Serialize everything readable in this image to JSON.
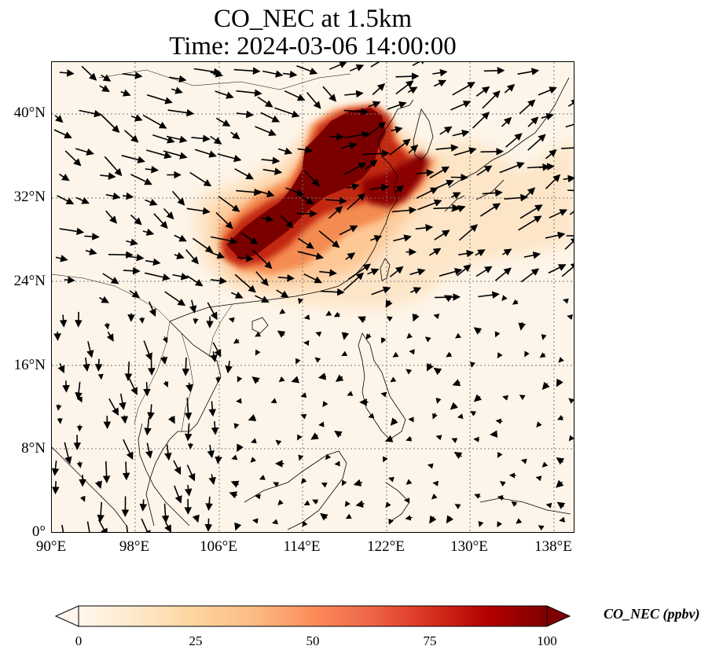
{
  "title": {
    "line1": "CO_NEC at 1.5km",
    "line2": "Time: 2024-03-06 14:00:00"
  },
  "map": {
    "lon_range": [
      90,
      140
    ],
    "lat_range": [
      0,
      45
    ],
    "projection": "PlateCarree",
    "gridlines": "dotted",
    "field": "CO_NEC",
    "overlay": "wind vectors",
    "xticks": [
      "90°E",
      "98°E",
      "106°E",
      "114°E",
      "122°E",
      "130°E",
      "138°E"
    ],
    "yticks": [
      "0°",
      "8°N",
      "16°N",
      "24°N",
      "32°N",
      "40°N"
    ]
  },
  "colorbar": {
    "label": "CO_NEC (ppbv)",
    "ticks": [
      "0",
      "25",
      "50",
      "75",
      "100"
    ],
    "range": [
      0,
      100
    ],
    "colormap": "OrRd",
    "extend": "both",
    "colors": [
      "#fff7ec",
      "#fee8c8",
      "#fdd49e",
      "#fdbb84",
      "#fc8d59",
      "#ef6548",
      "#d7301f",
      "#b30000",
      "#7f0000"
    ]
  }
}
